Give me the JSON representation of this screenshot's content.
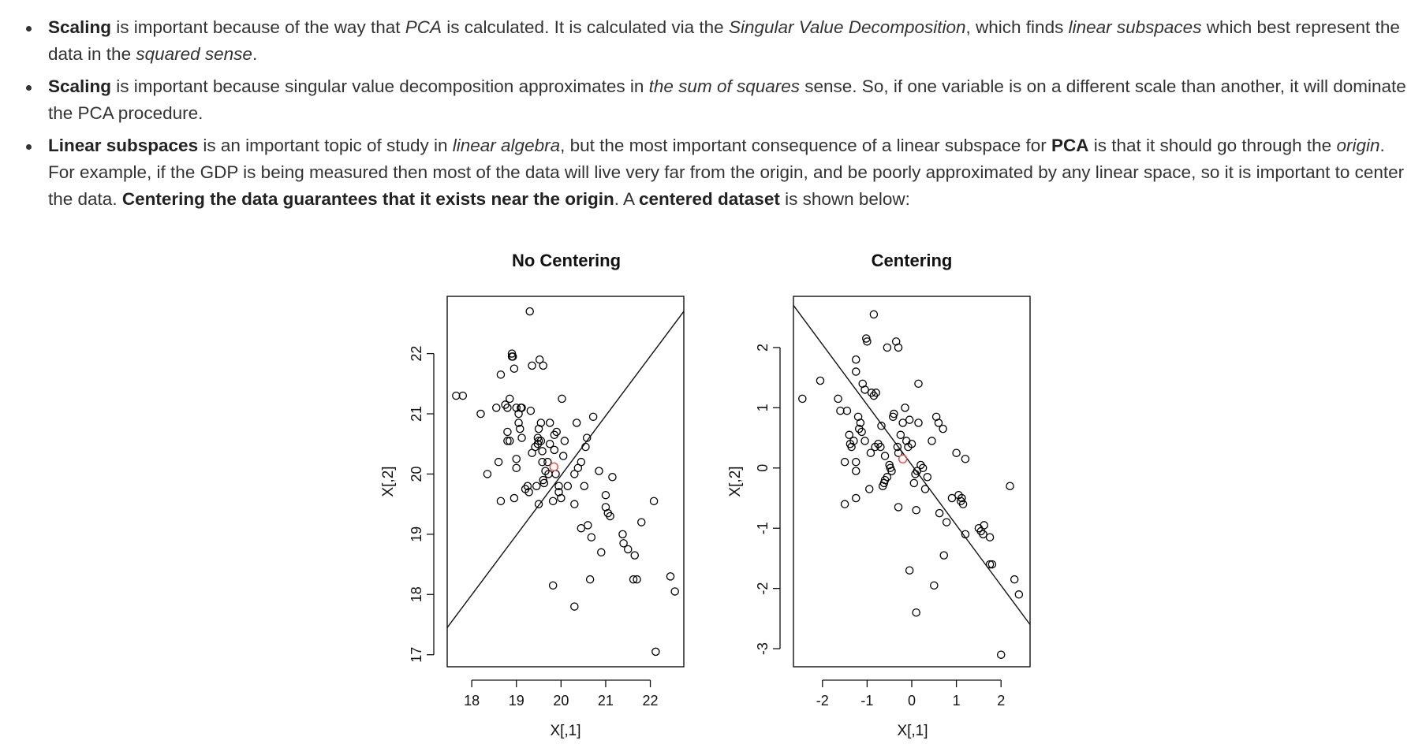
{
  "bullets": [
    {
      "runs": [
        {
          "t": "Scaling",
          "s": "b"
        },
        {
          "t": " is important because of the way that "
        },
        {
          "t": "PCA",
          "s": "i"
        },
        {
          "t": " is calculated. It is calculated via the "
        },
        {
          "t": "Singular Value Decomposition",
          "s": "i"
        },
        {
          "t": ", which finds "
        },
        {
          "t": "linear subspaces",
          "s": "i"
        },
        {
          "t": " which best represent the data in the "
        },
        {
          "t": "squared sense",
          "s": "i"
        },
        {
          "t": "."
        }
      ]
    },
    {
      "runs": [
        {
          "t": "Scaling",
          "s": "b"
        },
        {
          "t": " is important because singular value decomposition approximates in "
        },
        {
          "t": "the sum of squares",
          "s": "i"
        },
        {
          "t": " sense. So, if one variable is on a different scale than another, it will dominate the PCA procedure."
        }
      ]
    },
    {
      "runs": [
        {
          "t": "Linear subspaces",
          "s": "b"
        },
        {
          "t": " is an important topic of study in "
        },
        {
          "t": "linear algebra",
          "s": "i"
        },
        {
          "t": ", but the most important consequence of a linear subspace for "
        },
        {
          "t": "PCA",
          "s": "b"
        },
        {
          "t": " is that it should go through the "
        },
        {
          "t": "origin",
          "s": "i"
        },
        {
          "t": ". For example, if the GDP is being measured then most of the data will live very far from the origin, and be poorly approximated by any linear space, so it is important to center the data. "
        },
        {
          "t": "Centering the data guarantees that it exists near the origin",
          "s": "b"
        },
        {
          "t": ". A "
        },
        {
          "t": "centered dataset",
          "s": "b"
        },
        {
          "t": " is shown below:"
        }
      ]
    }
  ],
  "chart_data": [
    {
      "type": "scatter",
      "title": "No Centering",
      "xlabel": "X[,1]",
      "ylabel": "X[,2]",
      "xlim": [
        17.45,
        22.75
      ],
      "ylim": [
        16.8,
        22.95
      ],
      "xticks": [
        18,
        19,
        20,
        21,
        22
      ],
      "yticks": [
        17,
        18,
        19,
        20,
        21,
        22
      ],
      "point_color": "#000000",
      "mean_point": {
        "x": 19.84,
        "y": 20.12,
        "color": "#e8473f"
      },
      "line": {
        "x1": 17.45,
        "y1": 17.45,
        "x2": 22.75,
        "y2": 22.7
      },
      "points": [
        [
          17.65,
          21.3
        ],
        [
          17.8,
          21.3
        ],
        [
          18.2,
          21.0
        ],
        [
          18.35,
          20.0
        ],
        [
          18.55,
          21.1
        ],
        [
          18.6,
          20.2
        ],
        [
          18.65,
          19.55
        ],
        [
          18.65,
          21.65
        ],
        [
          18.75,
          21.15
        ],
        [
          18.8,
          21.1
        ],
        [
          18.8,
          20.7
        ],
        [
          18.8,
          20.55
        ],
        [
          18.85,
          21.25
        ],
        [
          18.85,
          20.55
        ],
        [
          18.9,
          21.95
        ],
        [
          18.9,
          22.0
        ],
        [
          18.92,
          21.95
        ],
        [
          18.95,
          21.75
        ],
        [
          18.95,
          19.6
        ],
        [
          19.0,
          21.1
        ],
        [
          19.0,
          20.25
        ],
        [
          19.0,
          20.1
        ],
        [
          19.05,
          21.0
        ],
        [
          19.05,
          20.85
        ],
        [
          19.08,
          20.75
        ],
        [
          19.1,
          21.1
        ],
        [
          19.12,
          21.1
        ],
        [
          19.12,
          20.6
        ],
        [
          19.2,
          19.75
        ],
        [
          19.25,
          19.8
        ],
        [
          19.28,
          19.7
        ],
        [
          19.3,
          22.7
        ],
        [
          19.32,
          21.05
        ],
        [
          19.35,
          21.8
        ],
        [
          19.35,
          20.35
        ],
        [
          19.42,
          20.45
        ],
        [
          19.45,
          19.8
        ],
        [
          19.48,
          20.6
        ],
        [
          19.48,
          20.5
        ],
        [
          19.5,
          20.75
        ],
        [
          19.5,
          20.55
        ],
        [
          19.5,
          19.5
        ],
        [
          19.52,
          21.9
        ],
        [
          19.55,
          20.85
        ],
        [
          19.55,
          20.55
        ],
        [
          19.58,
          20.38
        ],
        [
          19.58,
          20.2
        ],
        [
          19.6,
          21.8
        ],
        [
          19.6,
          19.9
        ],
        [
          19.62,
          19.85
        ],
        [
          19.65,
          20.05
        ],
        [
          19.7,
          20.2
        ],
        [
          19.72,
          20.0
        ],
        [
          19.75,
          20.5
        ],
        [
          19.75,
          20.85
        ],
        [
          19.82,
          18.15
        ],
        [
          19.82,
          19.55
        ],
        [
          19.85,
          20.4
        ],
        [
          19.85,
          20.65
        ],
        [
          19.88,
          20.0
        ],
        [
          19.9,
          20.7
        ],
        [
          19.95,
          19.8
        ],
        [
          19.95,
          19.7
        ],
        [
          20.0,
          19.6
        ],
        [
          20.02,
          21.25
        ],
        [
          20.05,
          20.3
        ],
        [
          20.08,
          20.55
        ],
        [
          20.15,
          19.8
        ],
        [
          20.3,
          19.5
        ],
        [
          20.3,
          20.0
        ],
        [
          20.3,
          17.8
        ],
        [
          20.35,
          20.85
        ],
        [
          20.38,
          20.1
        ],
        [
          20.45,
          20.2
        ],
        [
          20.45,
          19.1
        ],
        [
          20.52,
          19.8
        ],
        [
          20.55,
          20.45
        ],
        [
          20.58,
          20.6
        ],
        [
          20.6,
          19.15
        ],
        [
          20.65,
          18.25
        ],
        [
          20.68,
          18.95
        ],
        [
          20.72,
          20.95
        ],
        [
          20.85,
          20.05
        ],
        [
          20.9,
          18.7
        ],
        [
          21.0,
          19.65
        ],
        [
          21.0,
          19.45
        ],
        [
          21.05,
          19.35
        ],
        [
          21.1,
          19.3
        ],
        [
          21.15,
          19.95
        ],
        [
          21.38,
          19.0
        ],
        [
          21.4,
          18.85
        ],
        [
          21.5,
          18.75
        ],
        [
          21.62,
          18.25
        ],
        [
          21.65,
          18.65
        ],
        [
          21.7,
          18.25
        ],
        [
          21.8,
          19.2
        ],
        [
          22.08,
          19.55
        ],
        [
          22.12,
          17.05
        ],
        [
          22.45,
          18.3
        ],
        [
          22.55,
          18.05
        ]
      ]
    },
    {
      "type": "scatter",
      "title": "Centering",
      "xlabel": "X[,1]",
      "ylabel": "X[,2]",
      "xlim": [
        -2.65,
        2.65
      ],
      "ylim": [
        -3.3,
        2.85
      ],
      "xticks": [
        -2,
        -1,
        0,
        1,
        2
      ],
      "yticks": [
        -3,
        -2,
        -1,
        0,
        1,
        2
      ],
      "point_color": "#000000",
      "mean_point": {
        "x": -0.2,
        "y": 0.15,
        "color": "#e8473f"
      },
      "line": {
        "x1": -2.65,
        "y1": 2.7,
        "x2": 2.65,
        "y2": -2.6
      },
      "points": [
        [
          -2.45,
          1.15
        ],
        [
          -2.05,
          1.45
        ],
        [
          -1.65,
          1.15
        ],
        [
          -1.6,
          0.95
        ],
        [
          -1.5,
          0.1
        ],
        [
          -1.5,
          -0.6
        ],
        [
          -1.45,
          0.95
        ],
        [
          -1.4,
          0.55
        ],
        [
          -1.38,
          0.4
        ],
        [
          -1.35,
          0.35
        ],
        [
          -1.3,
          0.45
        ],
        [
          -1.25,
          -0.5
        ],
        [
          -1.25,
          0.1
        ],
        [
          -1.25,
          -0.05
        ],
        [
          -1.25,
          1.8
        ],
        [
          -1.25,
          1.6
        ],
        [
          -1.2,
          0.85
        ],
        [
          -1.18,
          0.65
        ],
        [
          -1.15,
          0.75
        ],
        [
          -1.12,
          0.6
        ],
        [
          -1.1,
          1.4
        ],
        [
          -1.05,
          1.3
        ],
        [
          -1.05,
          0.45
        ],
        [
          -1.02,
          2.15
        ],
        [
          -1.0,
          2.1
        ],
        [
          -0.95,
          -0.35
        ],
        [
          -0.92,
          0.25
        ],
        [
          -0.9,
          1.25
        ],
        [
          -0.85,
          2.55
        ],
        [
          -0.85,
          1.2
        ],
        [
          -0.82,
          0.35
        ],
        [
          -0.8,
          1.25
        ],
        [
          -0.75,
          0.4
        ],
        [
          -0.7,
          0.35
        ],
        [
          -0.68,
          0.7
        ],
        [
          -0.65,
          -0.3
        ],
        [
          -0.62,
          -0.25
        ],
        [
          -0.6,
          0.2
        ],
        [
          -0.6,
          -0.2
        ],
        [
          -0.55,
          2.0
        ],
        [
          -0.55,
          -0.15
        ],
        [
          -0.5,
          0.05
        ],
        [
          -0.48,
          0.0
        ],
        [
          -0.45,
          -0.05
        ],
        [
          -0.42,
          0.85
        ],
        [
          -0.4,
          0.9
        ],
        [
          -0.35,
          2.1
        ],
        [
          -0.32,
          0.35
        ],
        [
          -0.3,
          2.0
        ],
        [
          -0.3,
          0.25
        ],
        [
          -0.3,
          -0.65
        ],
        [
          -0.25,
          0.55
        ],
        [
          -0.2,
          0.75
        ],
        [
          -0.15,
          1.0
        ],
        [
          -0.12,
          0.45
        ],
        [
          -0.08,
          0.35
        ],
        [
          -0.05,
          0.8
        ],
        [
          -0.05,
          -1.7
        ],
        [
          0.0,
          0.4
        ],
        [
          0.05,
          -0.25
        ],
        [
          0.08,
          -0.1
        ],
        [
          0.1,
          -0.7
        ],
        [
          0.1,
          -2.4
        ],
        [
          0.12,
          -0.05
        ],
        [
          0.15,
          1.4
        ],
        [
          0.15,
          0.75
        ],
        [
          0.2,
          0.05
        ],
        [
          0.25,
          0.0
        ],
        [
          0.3,
          -0.35
        ],
        [
          0.35,
          -0.15
        ],
        [
          0.45,
          0.45
        ],
        [
          0.5,
          -1.95
        ],
        [
          0.55,
          0.85
        ],
        [
          0.6,
          0.75
        ],
        [
          0.62,
          -0.75
        ],
        [
          0.7,
          0.65
        ],
        [
          0.72,
          -1.45
        ],
        [
          0.78,
          -0.9
        ],
        [
          0.9,
          -0.5
        ],
        [
          1.0,
          0.25
        ],
        [
          1.05,
          -0.45
        ],
        [
          1.1,
          -0.55
        ],
        [
          1.12,
          -0.5
        ],
        [
          1.15,
          -0.6
        ],
        [
          1.2,
          0.15
        ],
        [
          1.2,
          -1.1
        ],
        [
          1.5,
          -1.0
        ],
        [
          1.55,
          -1.05
        ],
        [
          1.6,
          -1.1
        ],
        [
          1.62,
          -0.95
        ],
        [
          1.75,
          -1.15
        ],
        [
          1.75,
          -1.6
        ],
        [
          1.8,
          -1.6
        ],
        [
          2.0,
          -3.1
        ],
        [
          2.2,
          -0.3
        ],
        [
          2.3,
          -1.85
        ],
        [
          2.4,
          -2.1
        ]
      ]
    }
  ]
}
